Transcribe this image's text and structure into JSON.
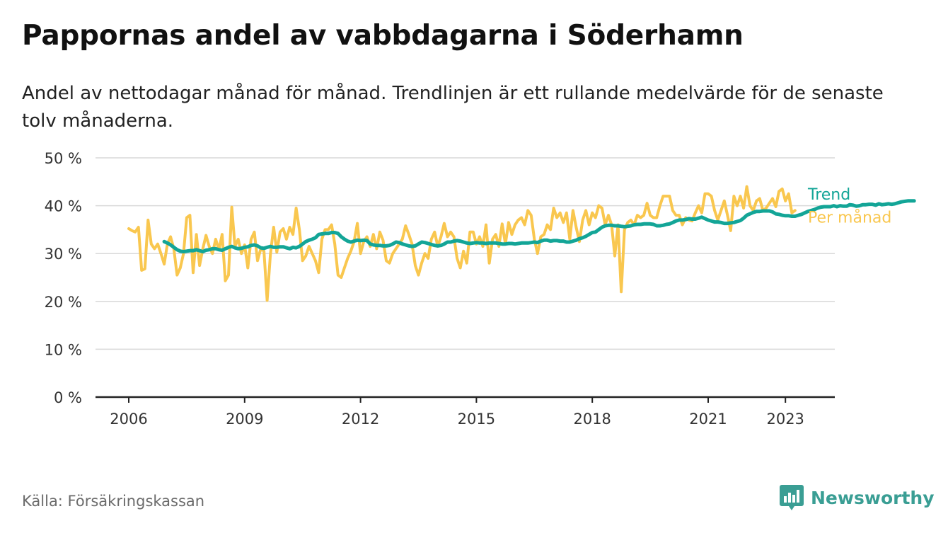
{
  "header": {
    "title": "Pappornas andel av vabbdagarna i Söderhamn",
    "subtitle": "Andel av nettodagar månad för månad. Trendlinjen är ett rullande medelvärde för de senaste tolv månaderna."
  },
  "footer": {
    "source": "Källa: Försäkringskassan",
    "brand": "Newsworthy"
  },
  "colors": {
    "monthly": "#f9c74f",
    "trend": "#13a597",
    "grid": "#d9d9d9",
    "axis": "#222222",
    "brand": "#3a9e94"
  },
  "icons": {
    "brand_logo": "bar-chart-bubble-icon"
  },
  "chart_data": {
    "type": "line",
    "title": "Pappornas andel av vabbdagarna i Söderhamn",
    "ylim": [
      0,
      50
    ],
    "y_ticks": [
      0,
      10,
      20,
      30,
      40,
      50
    ],
    "y_tick_labels": [
      "0 %",
      "10 %",
      "20 %",
      "30 %",
      "40 %",
      "50 %"
    ],
    "x_ticks": [
      2006,
      2009,
      2012,
      2015,
      2018,
      2021,
      2023
    ],
    "x_tick_labels": [
      "2006",
      "2009",
      "2012",
      "2015",
      "2018",
      "2021",
      "2023"
    ],
    "x_range": [
      "2005-03",
      "2024-02"
    ],
    "grid": true,
    "legend": "direct labels at line ends (right)",
    "series": [
      {
        "name": "Per månad",
        "start": "2006-01",
        "frequency": "monthly",
        "values": [
          35.2,
          34.8,
          34.5,
          35.5,
          26.5,
          26.8,
          37,
          32,
          31,
          32,
          30,
          27.8,
          32,
          33.5,
          31,
          25.5,
          27,
          30,
          37.5,
          38,
          26,
          34,
          27.5,
          31,
          33.8,
          31.5,
          30,
          33,
          30.8,
          34,
          24.3,
          25.5,
          39.7,
          31.5,
          33,
          30,
          31.8,
          27,
          33,
          34.5,
          28.5,
          31,
          30.5,
          20.2,
          29.8,
          35.5,
          30.3,
          34.5,
          35.2,
          33,
          35.5,
          34,
          39.5,
          35,
          28.5,
          29.5,
          31.5,
          30,
          28.5,
          26,
          33,
          35,
          35,
          36,
          32,
          25.5,
          25,
          27,
          29,
          30.5,
          32.5,
          36.3,
          30,
          32.5,
          33.5,
          31.5,
          34,
          31,
          34.5,
          32.8,
          28.5,
          28,
          30,
          31,
          32,
          33,
          35.8,
          34,
          32,
          27.5,
          25.5,
          28,
          30,
          29,
          33,
          34.5,
          31.5,
          33.5,
          36.3,
          33.5,
          34.5,
          33.5,
          29,
          27,
          30.5,
          28,
          34.5,
          34.5,
          32,
          33.5,
          31.5,
          36,
          28,
          33,
          34,
          31.5,
          36.2,
          32,
          36.5,
          34,
          36,
          37,
          37.5,
          36,
          39,
          38,
          33,
          30,
          33.5,
          34,
          36,
          35,
          39.5,
          37.5,
          38.5,
          36.5,
          38.5,
          33,
          39,
          35.5,
          32.5,
          37,
          39,
          36,
          38.5,
          37.5,
          40,
          39.5,
          36,
          38,
          36,
          29.5,
          36,
          22,
          35,
          36.5,
          37,
          36,
          38,
          37.5,
          38,
          40.5,
          38,
          37.5,
          37.5,
          40,
          42,
          42,
          42,
          39,
          38,
          38,
          36,
          37.5,
          37,
          36.8,
          38.5,
          40,
          38.5,
          42.5,
          42.5,
          42,
          39,
          37,
          39,
          41,
          38,
          34.8,
          42,
          40,
          42,
          39.5,
          44,
          40,
          39,
          41,
          41.5,
          39,
          39.5,
          40.5,
          41.5,
          39.8,
          43,
          43.5,
          41,
          42.5,
          38.5,
          39
        ],
        "color": "#f9c74f"
      },
      {
        "name": "Trend",
        "start": "2006-12",
        "frequency": "monthly",
        "values": [
          32.5,
          32.2,
          31.8,
          31.3,
          30.8,
          30.5,
          30.4,
          30.5,
          30.6,
          30.6,
          30.8,
          30.6,
          30.4,
          30.7,
          30.8,
          31,
          31,
          30.8,
          30.7,
          31,
          31.3,
          31.5,
          31.2,
          31,
          31.1,
          31.3,
          31.4,
          31.7,
          31.8,
          31.6,
          31.2,
          31.1,
          31.3,
          31.5,
          31.3,
          31.3,
          31.4,
          31.4,
          31.2,
          31,
          31.3,
          31.2,
          31.5,
          32,
          32.5,
          32.8,
          33,
          33.3,
          34,
          34.1,
          34.2,
          34.2,
          34.4,
          34.4,
          34.2,
          33.5,
          33,
          32.6,
          32.4,
          32.6,
          32.8,
          32.7,
          32.8,
          32.7,
          32,
          31.8,
          31.7,
          31.7,
          31.6,
          31.6,
          31.7,
          32,
          32.4,
          32.3,
          32,
          31.8,
          31.6,
          31.5,
          31.6,
          32,
          32.4,
          32.3,
          32.1,
          31.9,
          31.7,
          31.6,
          31.7,
          32,
          32.4,
          32.4,
          32.6,
          32.7,
          32.6,
          32.4,
          32.2,
          32.1,
          32.2,
          32.3,
          32.2,
          32.2,
          32.1,
          32.2,
          32.2,
          32.2,
          32.1,
          32,
          32,
          32.1,
          32.1,
          32,
          32.1,
          32.2,
          32.2,
          32.2,
          32.3,
          32.4,
          32.3,
          32.6,
          32.8,
          32.8,
          32.6,
          32.7,
          32.7,
          32.6,
          32.6,
          32.4,
          32.4,
          32.6,
          32.8,
          33.1,
          33.3,
          33.6,
          34,
          34.4,
          34.5,
          35,
          35.5,
          35.8,
          35.9,
          35.9,
          35.8,
          35.8,
          35.7,
          35.6,
          35.7,
          35.8,
          36,
          36.1,
          36.1,
          36.2,
          36.2,
          36.2,
          36.1,
          35.8,
          35.8,
          35.9,
          36.1,
          36.2,
          36.5,
          36.8,
          37,
          37,
          37.1,
          37.3,
          37.2,
          37.2,
          37.4,
          37.6,
          37.3,
          37,
          36.8,
          36.6,
          36.6,
          36.5,
          36.3,
          36.3,
          36.4,
          36.5,
          36.7,
          36.9,
          37.4,
          38,
          38.3,
          38.6,
          38.8,
          38.8,
          38.9,
          38.9,
          38.9,
          38.7,
          38.3,
          38.2,
          38,
          37.9,
          37.9,
          37.8,
          37.8,
          38,
          38.2,
          38.5,
          38.8,
          39,
          39.2,
          39.5,
          39.7,
          39.8,
          39.8,
          39.8,
          40,
          39.8,
          40,
          39.9,
          39.9,
          40.2,
          40.1,
          39.9,
          40,
          40.2,
          40.2,
          40.3,
          40.3,
          40.1,
          40.4,
          40.2,
          40.3,
          40.4,
          40.3,
          40.4,
          40.6,
          40.8,
          40.9,
          41,
          41,
          41
        ]
      }
    ],
    "series_colors": [
      "#f9c74f",
      "#13a597"
    ]
  }
}
